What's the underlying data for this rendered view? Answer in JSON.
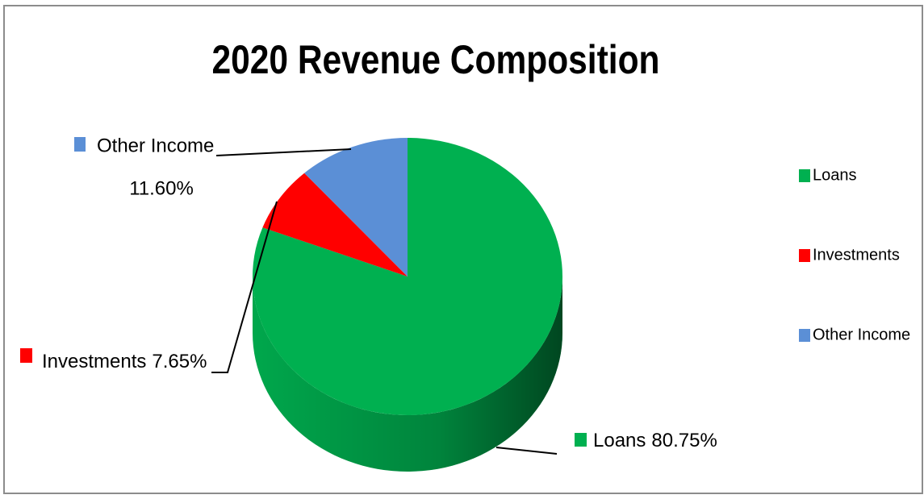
{
  "chart_data": {
    "type": "pie",
    "title": "2020 Revenue Composition",
    "categories": [
      "Loans",
      "Investments",
      "Other Income"
    ],
    "values": [
      80.75,
      7.65,
      11.6
    ],
    "value_labels": [
      "80.75%",
      "7.65%",
      "11.60%"
    ],
    "colors": [
      "#00b050",
      "#ff0000",
      "#5b8fd6"
    ],
    "legend": "right"
  }
}
